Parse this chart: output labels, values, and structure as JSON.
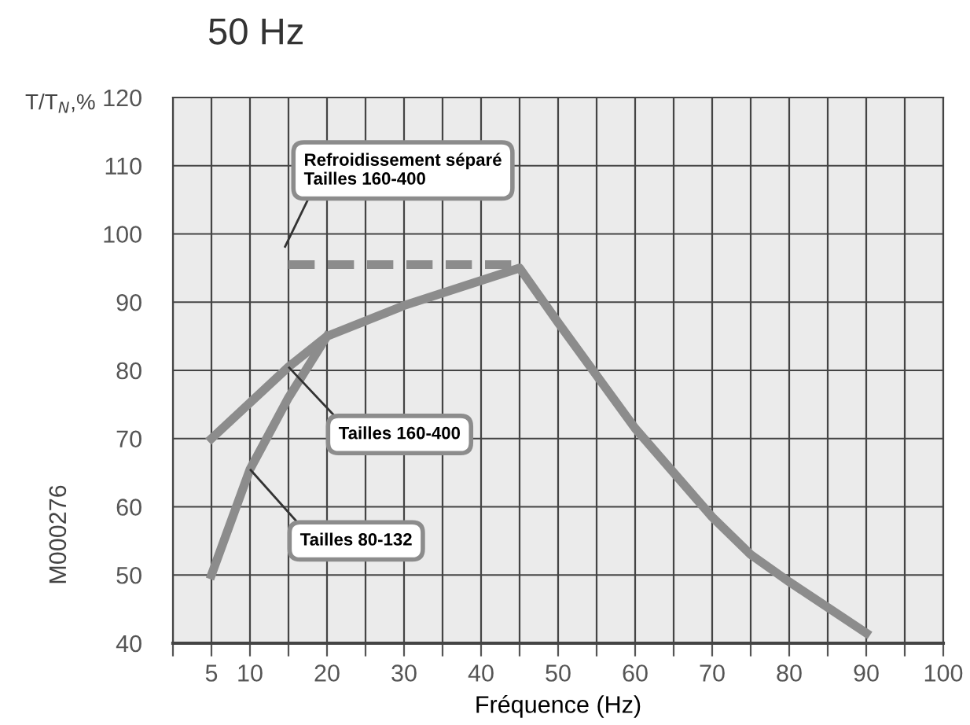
{
  "chart_data": {
    "type": "line",
    "title": "50 Hz",
    "xlabel": "Fréquence (Hz)",
    "ylabel": "T/T$_{N}$,%",
    "xlim": [
      0,
      100
    ],
    "xticks": [
      {
        "value": 0,
        "label": null
      },
      5,
      10,
      {
        "value": 15,
        "label": null
      },
      20,
      {
        "value": 25,
        "label": null
      },
      30,
      {
        "value": 35,
        "label": null
      },
      40,
      {
        "value": 45,
        "label": null
      },
      50,
      {
        "value": 55,
        "label": null
      },
      60,
      {
        "value": 65,
        "label": null
      },
      70,
      {
        "value": 75,
        "label": null
      },
      80,
      {
        "value": 85,
        "label": null
      },
      90,
      {
        "value": 95,
        "label": null
      },
      100
    ],
    "ylim": [
      40,
      120
    ],
    "yticks": [
      40,
      50,
      60,
      70,
      80,
      90,
      100,
      110,
      120
    ],
    "grid": true,
    "legend": false,
    "marker": "none",
    "series": [
      {
        "name": "Tailles 160-400",
        "color": "#8c8c8c",
        "line_style": "solid",
        "x": [
          5,
          15,
          20,
          30,
          45,
          50,
          60,
          70,
          75,
          80,
          90
        ],
        "values": [
          70,
          80.5,
          85,
          89.5,
          95,
          87,
          71.5,
          58.5,
          53,
          49,
          41.5
        ]
      },
      {
        "name": "Tailles 80-132",
        "color": "#8c8c8c",
        "line_style": "solid",
        "x": [
          5,
          10,
          15,
          20
        ],
        "values": [
          50,
          65.5,
          76,
          85
        ]
      },
      {
        "name": "Refroidissement séparé\nTailles 160-400",
        "color": "#8c8c8c",
        "line_style": "dashed",
        "x": [
          15,
          45
        ],
        "values": [
          95.5,
          95.5
        ]
      }
    ],
    "annotations": [
      "M000276"
    ]
  }
}
